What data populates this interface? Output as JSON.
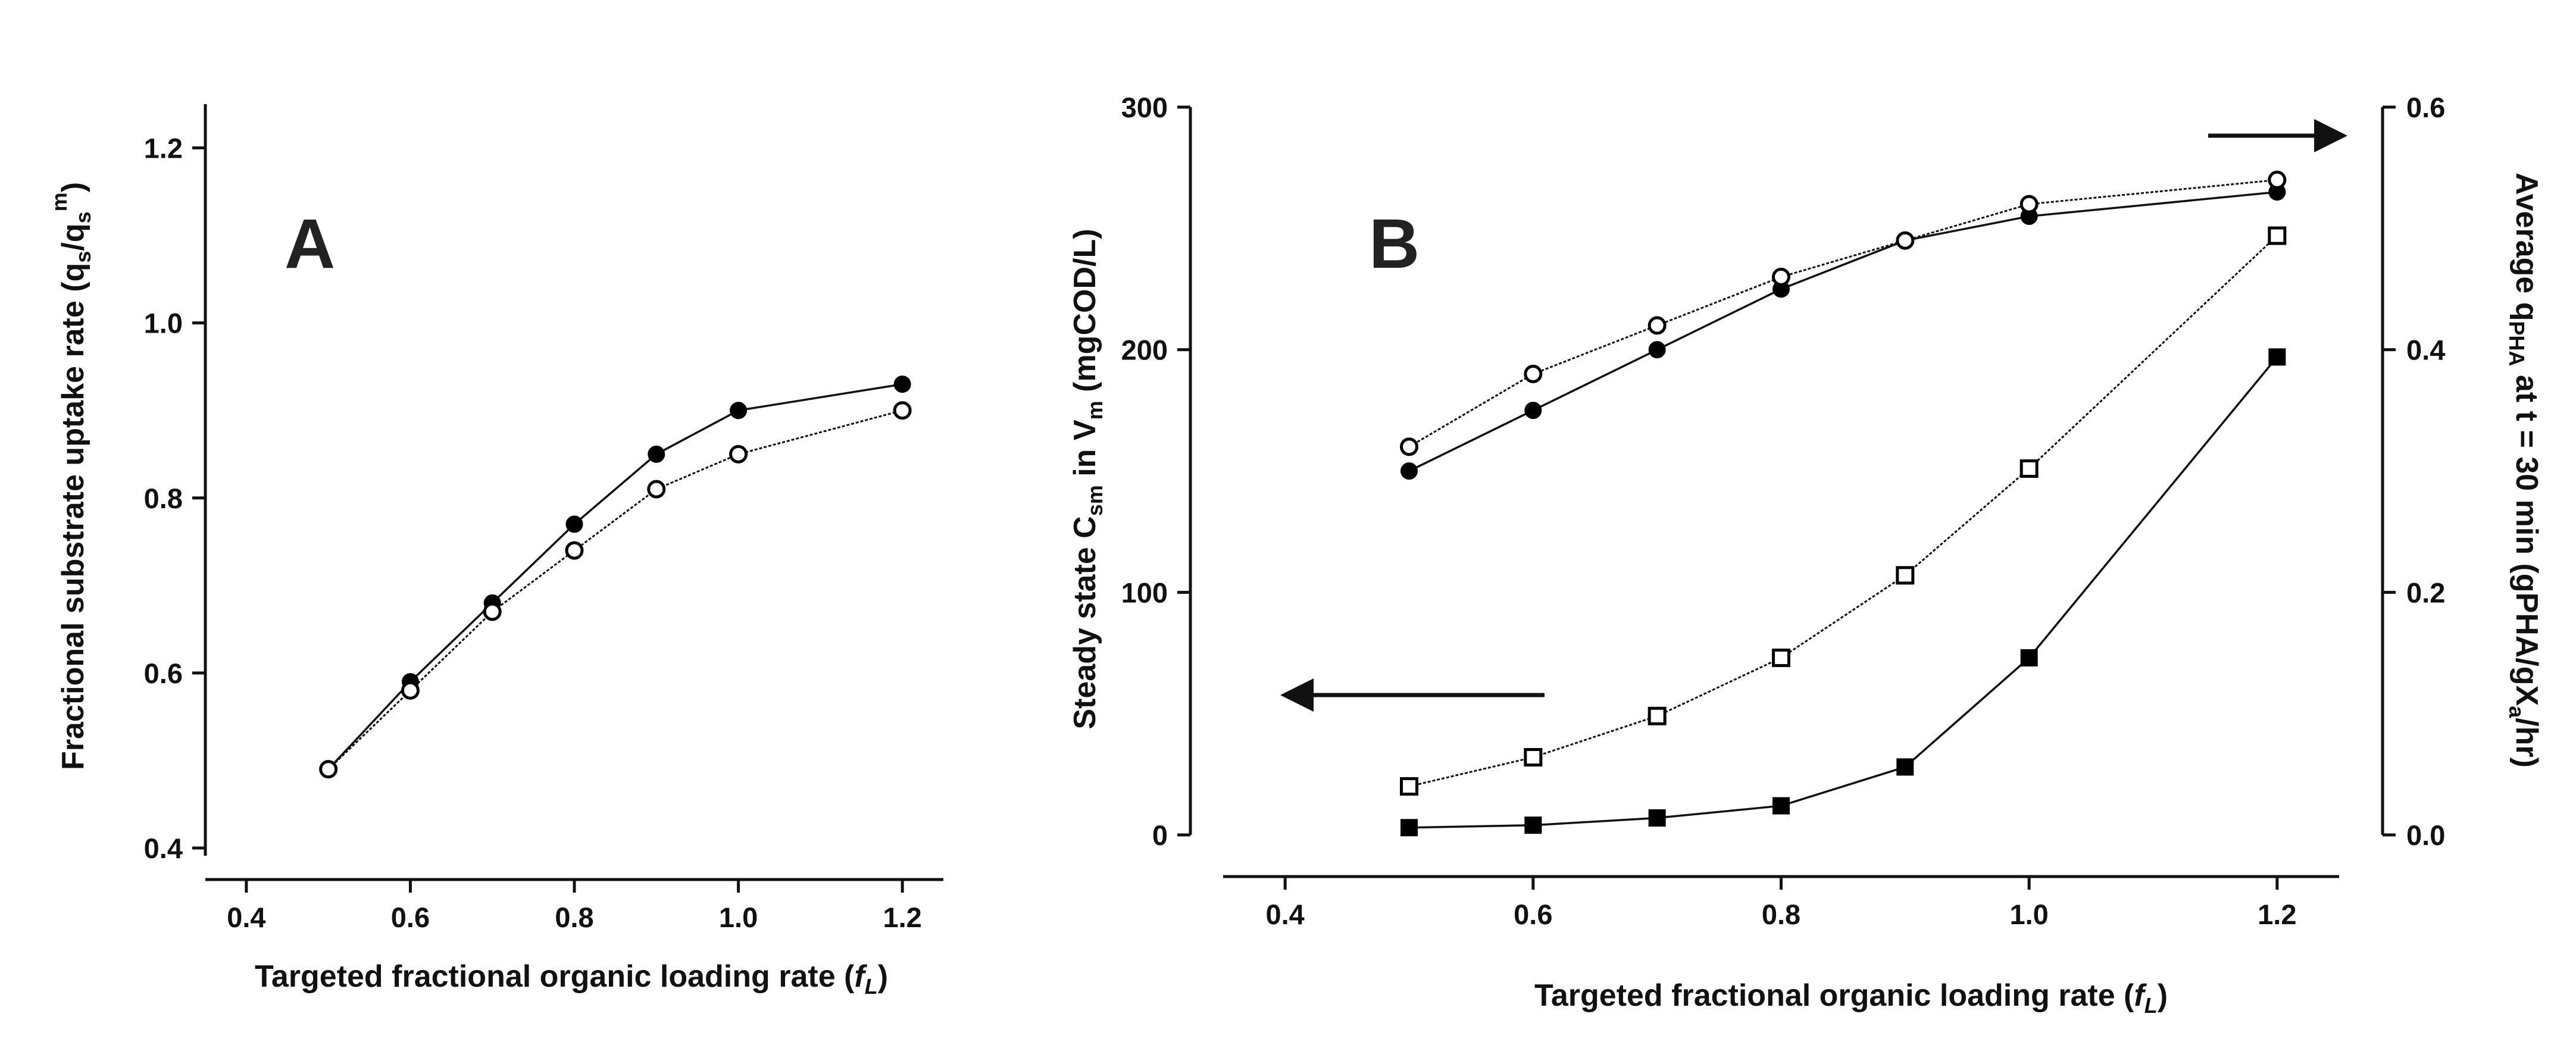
{
  "chart_data": [
    {
      "panel": "A",
      "type": "line",
      "xlabel": "Targeted fractional organic loading rate (f_L)",
      "ylabel": "Fractional substrate uptake rate (q_s/q_s^m)",
      "xlim": [
        0.35,
        1.25
      ],
      "ylim": [
        0.4,
        1.25
      ],
      "xticks": [
        "0.4",
        "0.6",
        "0.8",
        "1.0",
        "1.2"
      ],
      "yticks": [
        "0.4",
        "0.6",
        "0.8",
        "1.0",
        "1.2"
      ],
      "x": [
        0.5,
        0.6,
        0.7,
        0.8,
        0.9,
        1.0,
        1.2
      ],
      "series": [
        {
          "name": "filled-circle",
          "marker": "filled-circle",
          "line": "solid",
          "values": [
            0.49,
            0.59,
            0.68,
            0.77,
            0.85,
            0.9,
            0.93
          ]
        },
        {
          "name": "open-circle",
          "marker": "open-circle",
          "line": "dotted",
          "values": [
            0.49,
            0.58,
            0.67,
            0.74,
            0.81,
            0.85,
            0.9
          ]
        }
      ]
    },
    {
      "panel": "B",
      "type": "line",
      "xlabel": "Targeted fractional organic loading rate (f_L)",
      "ylabel": "Steady state C_sm in V_m (mgCOD/L)",
      "y2label": "Average q_PHA at t = 30 min (gPHA/gX_a/hr)",
      "xlim": [
        0.35,
        1.25
      ],
      "ylim": [
        0,
        300
      ],
      "y2lim": [
        0,
        0.6
      ],
      "xticks": [
        "0.4",
        "0.6",
        "0.8",
        "1.0",
        "1.2"
      ],
      "yticks": [
        "0",
        "100",
        "200",
        "300"
      ],
      "y2ticks": [
        "0.0",
        "0.2",
        "0.4",
        "0.6"
      ],
      "x": [
        0.5,
        0.6,
        0.7,
        0.8,
        0.9,
        1.0,
        1.2
      ],
      "series": [
        {
          "name": "filled-square",
          "axis": "left",
          "marker": "filled-square",
          "line": "solid",
          "values": [
            3,
            4,
            7,
            12,
            28,
            73,
            197
          ]
        },
        {
          "name": "open-square",
          "axis": "left",
          "marker": "open-square",
          "line": "dotted",
          "values": [
            20,
            32,
            49,
            73,
            107,
            151,
            247
          ]
        },
        {
          "name": "filled-circle",
          "axis": "right",
          "marker": "filled-circle",
          "line": "solid",
          "values": [
            0.3,
            0.35,
            0.4,
            0.45,
            0.49,
            0.51,
            0.53
          ]
        },
        {
          "name": "open-circle",
          "axis": "right",
          "marker": "open-circle",
          "line": "dotted",
          "values": [
            0.32,
            0.38,
            0.42,
            0.46,
            0.49,
            0.52,
            0.54
          ]
        }
      ],
      "annotations": [
        "left arrow indicates left axis (squares)",
        "right arrow indicates right axis (circles)"
      ]
    }
  ],
  "labels": {
    "panel_a": "A",
    "panel_b": "B",
    "xlabel_main": "Targeted fractional organic loading rate (",
    "xlabel_sym": "f",
    "xlabel_sub": "L",
    "xlabel_close": ")",
    "a_ylabel_main": "Fractional substrate uptake rate (q",
    "a_ylabel_sub1": "s",
    "a_ylabel_mid": "/q",
    "a_ylabel_sub2": "s",
    "a_ylabel_sup": "m",
    "a_ylabel_close": ")",
    "b_ylabel_main": "Steady state C",
    "b_ylabel_sub1": "sm",
    "b_ylabel_mid": " in V",
    "b_ylabel_sub2": "m",
    "b_ylabel_close": " (mgCOD/L)",
    "b_y2label_main": "Average q",
    "b_y2label_sub1": "PHA",
    "b_y2label_mid": " at t = 30 min (gPHA/gX",
    "b_y2label_sub2": "a",
    "b_y2label_close": "/hr)"
  }
}
